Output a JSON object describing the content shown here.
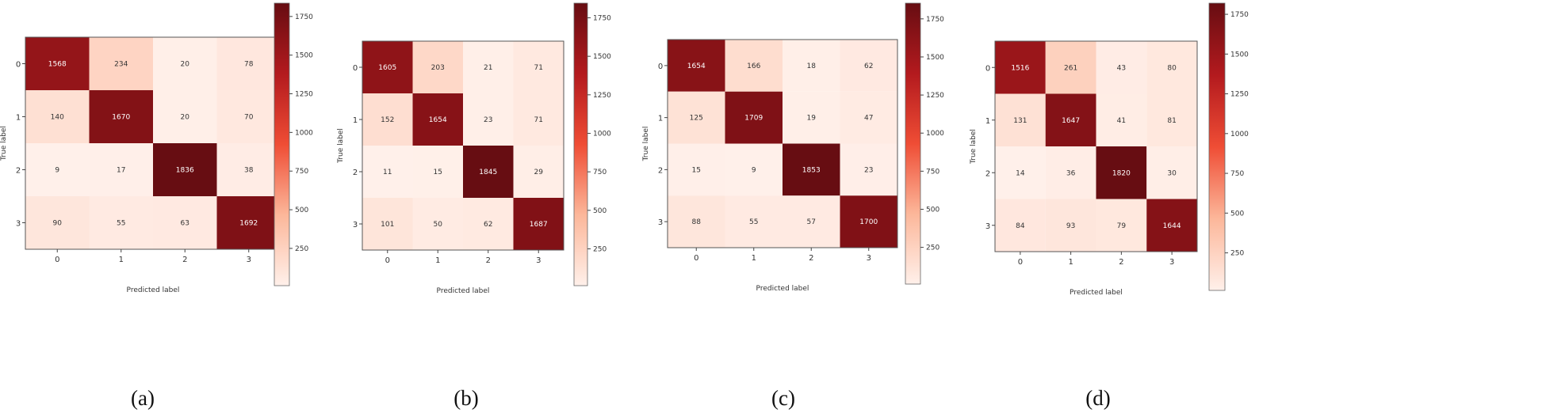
{
  "figure": {
    "panels": [
      "(a)",
      "(b)",
      "(c)",
      "(d)"
    ]
  },
  "colors": {
    "low": "#fff0ea",
    "mid_low": "#fcb79a",
    "mid": "#ef4d35",
    "mid_high": "#b31a1e",
    "high": "#670d12",
    "light_text": "#ffffff",
    "dark_text": "#333333"
  },
  "chart_data": [
    {
      "type": "heatmap",
      "panel": "(a)",
      "title": "",
      "xlabel": "Predicted label",
      "ylabel": "True label",
      "x_ticks": [
        "0",
        "1",
        "2",
        "3"
      ],
      "y_ticks": [
        "0",
        "1",
        "2",
        "3"
      ],
      "values": [
        [
          1568,
          234,
          20,
          78
        ],
        [
          140,
          1670,
          20,
          70
        ],
        [
          9,
          17,
          1836,
          38
        ],
        [
          90,
          55,
          63,
          1692
        ]
      ],
      "colorbar": {
        "ticks": [
          "1750",
          "1500",
          "1250",
          "1000",
          "750",
          "500",
          "250"
        ],
        "tick_values": [
          1750,
          1500,
          1250,
          1000,
          750,
          500,
          250
        ],
        "range": [
          9,
          1836
        ]
      }
    },
    {
      "type": "heatmap",
      "panel": "(b)",
      "title": "",
      "xlabel": "Predicted label",
      "ylabel": "True label",
      "x_ticks": [
        "0",
        "1",
        "2",
        "3"
      ],
      "y_ticks": [
        "0",
        "1",
        "2",
        "3"
      ],
      "values": [
        [
          1605,
          203,
          21,
          71
        ],
        [
          152,
          1654,
          23,
          71
        ],
        [
          11,
          15,
          1845,
          29
        ],
        [
          101,
          50,
          62,
          1687
        ]
      ],
      "colorbar": {
        "ticks": [
          "1750",
          "1500",
          "1250",
          "1000",
          "750",
          "500",
          "250"
        ],
        "tick_values": [
          1750,
          1500,
          1250,
          1000,
          750,
          500,
          250
        ],
        "range": [
          11,
          1845
        ]
      }
    },
    {
      "type": "heatmap",
      "panel": "(c)",
      "title": "",
      "xlabel": "Predicted label",
      "ylabel": "True label",
      "x_ticks": [
        "0",
        "1",
        "2",
        "3"
      ],
      "y_ticks": [
        "0",
        "1",
        "2",
        "3"
      ],
      "values": [
        [
          1654,
          166,
          18,
          62
        ],
        [
          125,
          1709,
          19,
          47
        ],
        [
          15,
          9,
          1853,
          23
        ],
        [
          88,
          55,
          57,
          1700
        ]
      ],
      "colorbar": {
        "ticks": [
          "1750",
          "1500",
          "1250",
          "1000",
          "750",
          "500",
          "250"
        ],
        "tick_values": [
          1750,
          1500,
          1250,
          1000,
          750,
          500,
          250
        ],
        "range": [
          9,
          1853
        ]
      }
    },
    {
      "type": "heatmap",
      "panel": "(d)",
      "title": "",
      "xlabel": "Predicted label",
      "ylabel": "True label",
      "x_ticks": [
        "0",
        "1",
        "2",
        "3"
      ],
      "y_ticks": [
        "0",
        "1",
        "2",
        "3"
      ],
      "values": [
        [
          1516,
          261,
          43,
          80
        ],
        [
          131,
          1647,
          41,
          81
        ],
        [
          14,
          36,
          1820,
          30
        ],
        [
          84,
          93,
          79,
          1644
        ]
      ],
      "colorbar": {
        "ticks": [
          "1750",
          "1500",
          "1250",
          "1000",
          "750",
          "500",
          "250"
        ],
        "tick_values": [
          1750,
          1500,
          1250,
          1000,
          750,
          500,
          250
        ],
        "range": [
          14,
          1820
        ]
      }
    }
  ]
}
